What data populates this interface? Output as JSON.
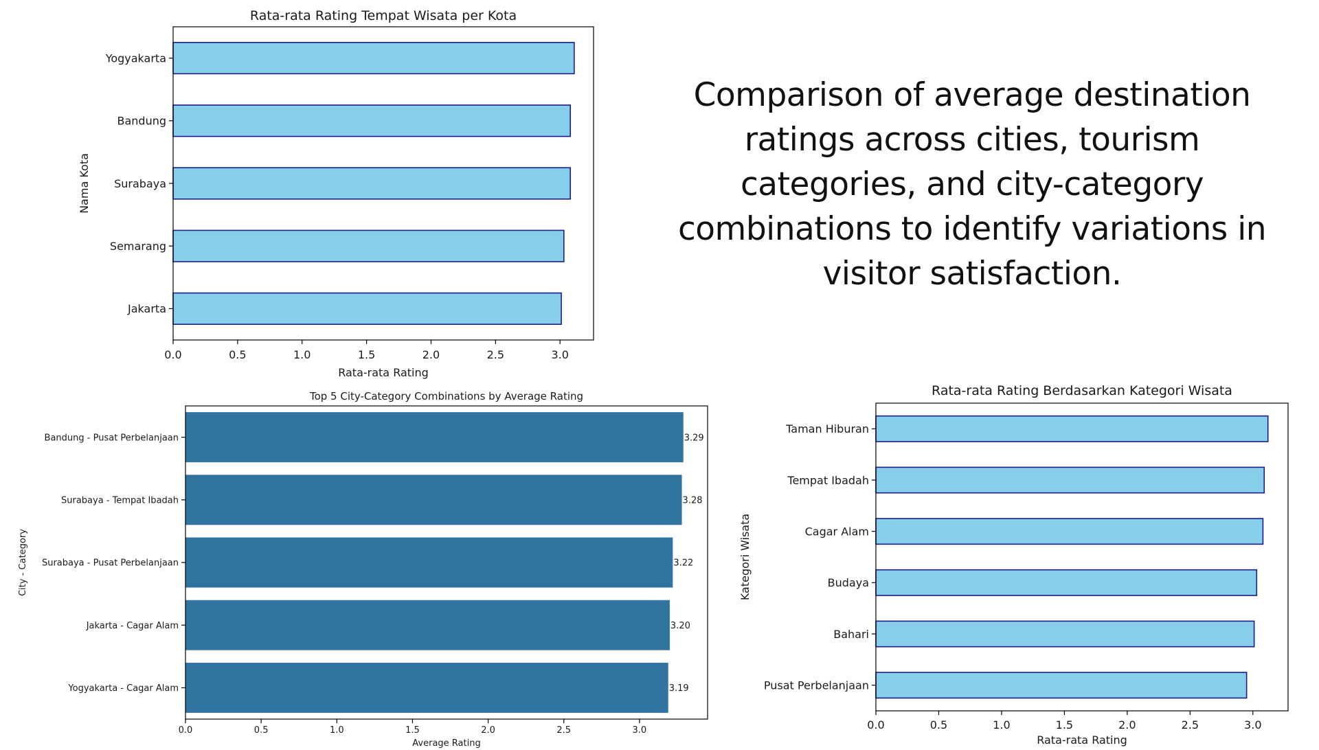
{
  "caption": "Comparison of average destination ratings across cities, tourism categories, and city-category combinations to identify variations in visitor satisfaction.",
  "colors": {
    "light_bar_fill": "#87ceeb",
    "light_bar_edge": "#1c1c8c",
    "dark_bar_fill": "#3274a1",
    "axis": "#000000",
    "text": "#1a1a1a"
  },
  "chart_data": [
    {
      "id": "city",
      "type": "bar",
      "orientation": "horizontal",
      "title": "Rata-rata Rating Tempat Wisata per Kota",
      "xlabel": "Rata-rata Rating",
      "ylabel": "Nama Kota",
      "categories": [
        "Yogyakarta",
        "Bandung",
        "Surabaya",
        "Semarang",
        "Jakarta"
      ],
      "values": [
        3.11,
        3.08,
        3.08,
        3.03,
        3.01
      ],
      "xlim": [
        0,
        3.26
      ],
      "xticks": [
        "0.0",
        "0.5",
        "1.0",
        "1.5",
        "2.0",
        "2.5",
        "3.0"
      ],
      "grid": false,
      "style": "light"
    },
    {
      "id": "combo",
      "type": "bar",
      "orientation": "horizontal",
      "title": "Top 5 City-Category Combinations by Average Rating",
      "xlabel": "Average Rating",
      "ylabel": "City - Category",
      "categories": [
        "Bandung - Pusat Perbelanjaan",
        "Surabaya - Tempat Ibadah",
        "Surabaya - Pusat Perbelanjaan",
        "Jakarta - Cagar Alam",
        "Yogyakarta - Cagar Alam"
      ],
      "values": [
        3.29,
        3.28,
        3.22,
        3.2,
        3.19
      ],
      "data_labels": [
        "3.29",
        "3.28",
        "3.22",
        "3.20",
        "3.19"
      ],
      "xlim": [
        0,
        3.45
      ],
      "xticks": [
        "0.0",
        "0.5",
        "1.0",
        "1.5",
        "2.0",
        "2.5",
        "3.0"
      ],
      "grid": false,
      "style": "dark"
    },
    {
      "id": "category",
      "type": "bar",
      "orientation": "horizontal",
      "title": "Rata-rata Rating Berdasarkan Kategori Wisata",
      "xlabel": "Rata-rata Rating",
      "ylabel": "Kategori Wisata",
      "categories": [
        "Taman Hiburan",
        "Tempat Ibadah",
        "Cagar Alam",
        "Budaya",
        "Bahari",
        "Pusat Perbelanjaan"
      ],
      "values": [
        3.12,
        3.09,
        3.08,
        3.03,
        3.01,
        2.95
      ],
      "xlim": [
        0,
        3.28
      ],
      "xticks": [
        "0.0",
        "0.5",
        "1.0",
        "1.5",
        "2.0",
        "2.5",
        "3.0"
      ],
      "grid": false,
      "style": "light"
    }
  ]
}
